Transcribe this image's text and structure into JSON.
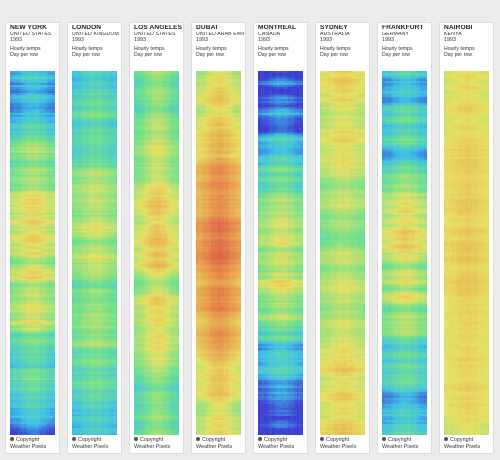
{
  "cards": [
    {
      "city": "NEW YORK",
      "country": "UNITED STATES",
      "year": "1993",
      "desc_line1": "Hourly temps",
      "desc_line2": "Day per row",
      "copyright": "Copyright",
      "brand": "Weather Pixels",
      "profile": "newyork"
    },
    {
      "city": "LONDON",
      "country": "UNITED KINGDOM",
      "year": "1993",
      "desc_line1": "Hourly temps",
      "desc_line2": "Day per row",
      "copyright": "Copyright",
      "brand": "Weather Pixels",
      "profile": "london"
    },
    {
      "city": "LOS ANGELES",
      "country": "UNITED STATES",
      "year": "1993",
      "desc_line1": "Hourly temps",
      "desc_line2": "Day per row",
      "copyright": "Copyright",
      "brand": "Weather Pixels",
      "profile": "losangeles"
    },
    {
      "city": "DUBAI",
      "country": "UNITED ARAB EMIRATES",
      "year": "1993",
      "desc_line1": "Hourly temps",
      "desc_line2": "Day per row",
      "copyright": "Copyright",
      "brand": "Weather Pixels",
      "profile": "dubai"
    },
    {
      "city": "MONTREAL",
      "country": "CANADA",
      "year": "1993",
      "desc_line1": "Hourly temps",
      "desc_line2": "Day per row",
      "copyright": "Copyright",
      "brand": "Weather Pixels",
      "profile": "montreal"
    },
    {
      "city": "SYDNEY",
      "country": "AUSTRALIA",
      "year": "1993",
      "desc_line1": "Hourly temps",
      "desc_line2": "Day per row",
      "copyright": "Copyright",
      "brand": "Weather Pixels",
      "profile": "sydney"
    },
    {
      "city": "FRANKFURT",
      "country": "GERMANY",
      "year": "1993",
      "desc_line1": "Hourly temps",
      "desc_line2": "Day per row",
      "copyright": "Copyright",
      "brand": "Weather Pixels",
      "profile": "frankfurt"
    },
    {
      "city": "NAIROBI",
      "country": "KENYA",
      "year": "1993",
      "desc_line1": "Hourly temps",
      "desc_line2": "Day per row",
      "copyright": "Copyright",
      "brand": "Weather Pixels",
      "profile": "nairobi"
    }
  ],
  "colors": {
    "cold": "#3b3fd1",
    "cool": "#3cc0e6",
    "mild": "#6fe08a",
    "warm": "#e6e060",
    "hot": "#e79a4a",
    "very_hot": "#d94c45",
    "card_background": "#ffffff",
    "page_background": "#ececec"
  }
}
